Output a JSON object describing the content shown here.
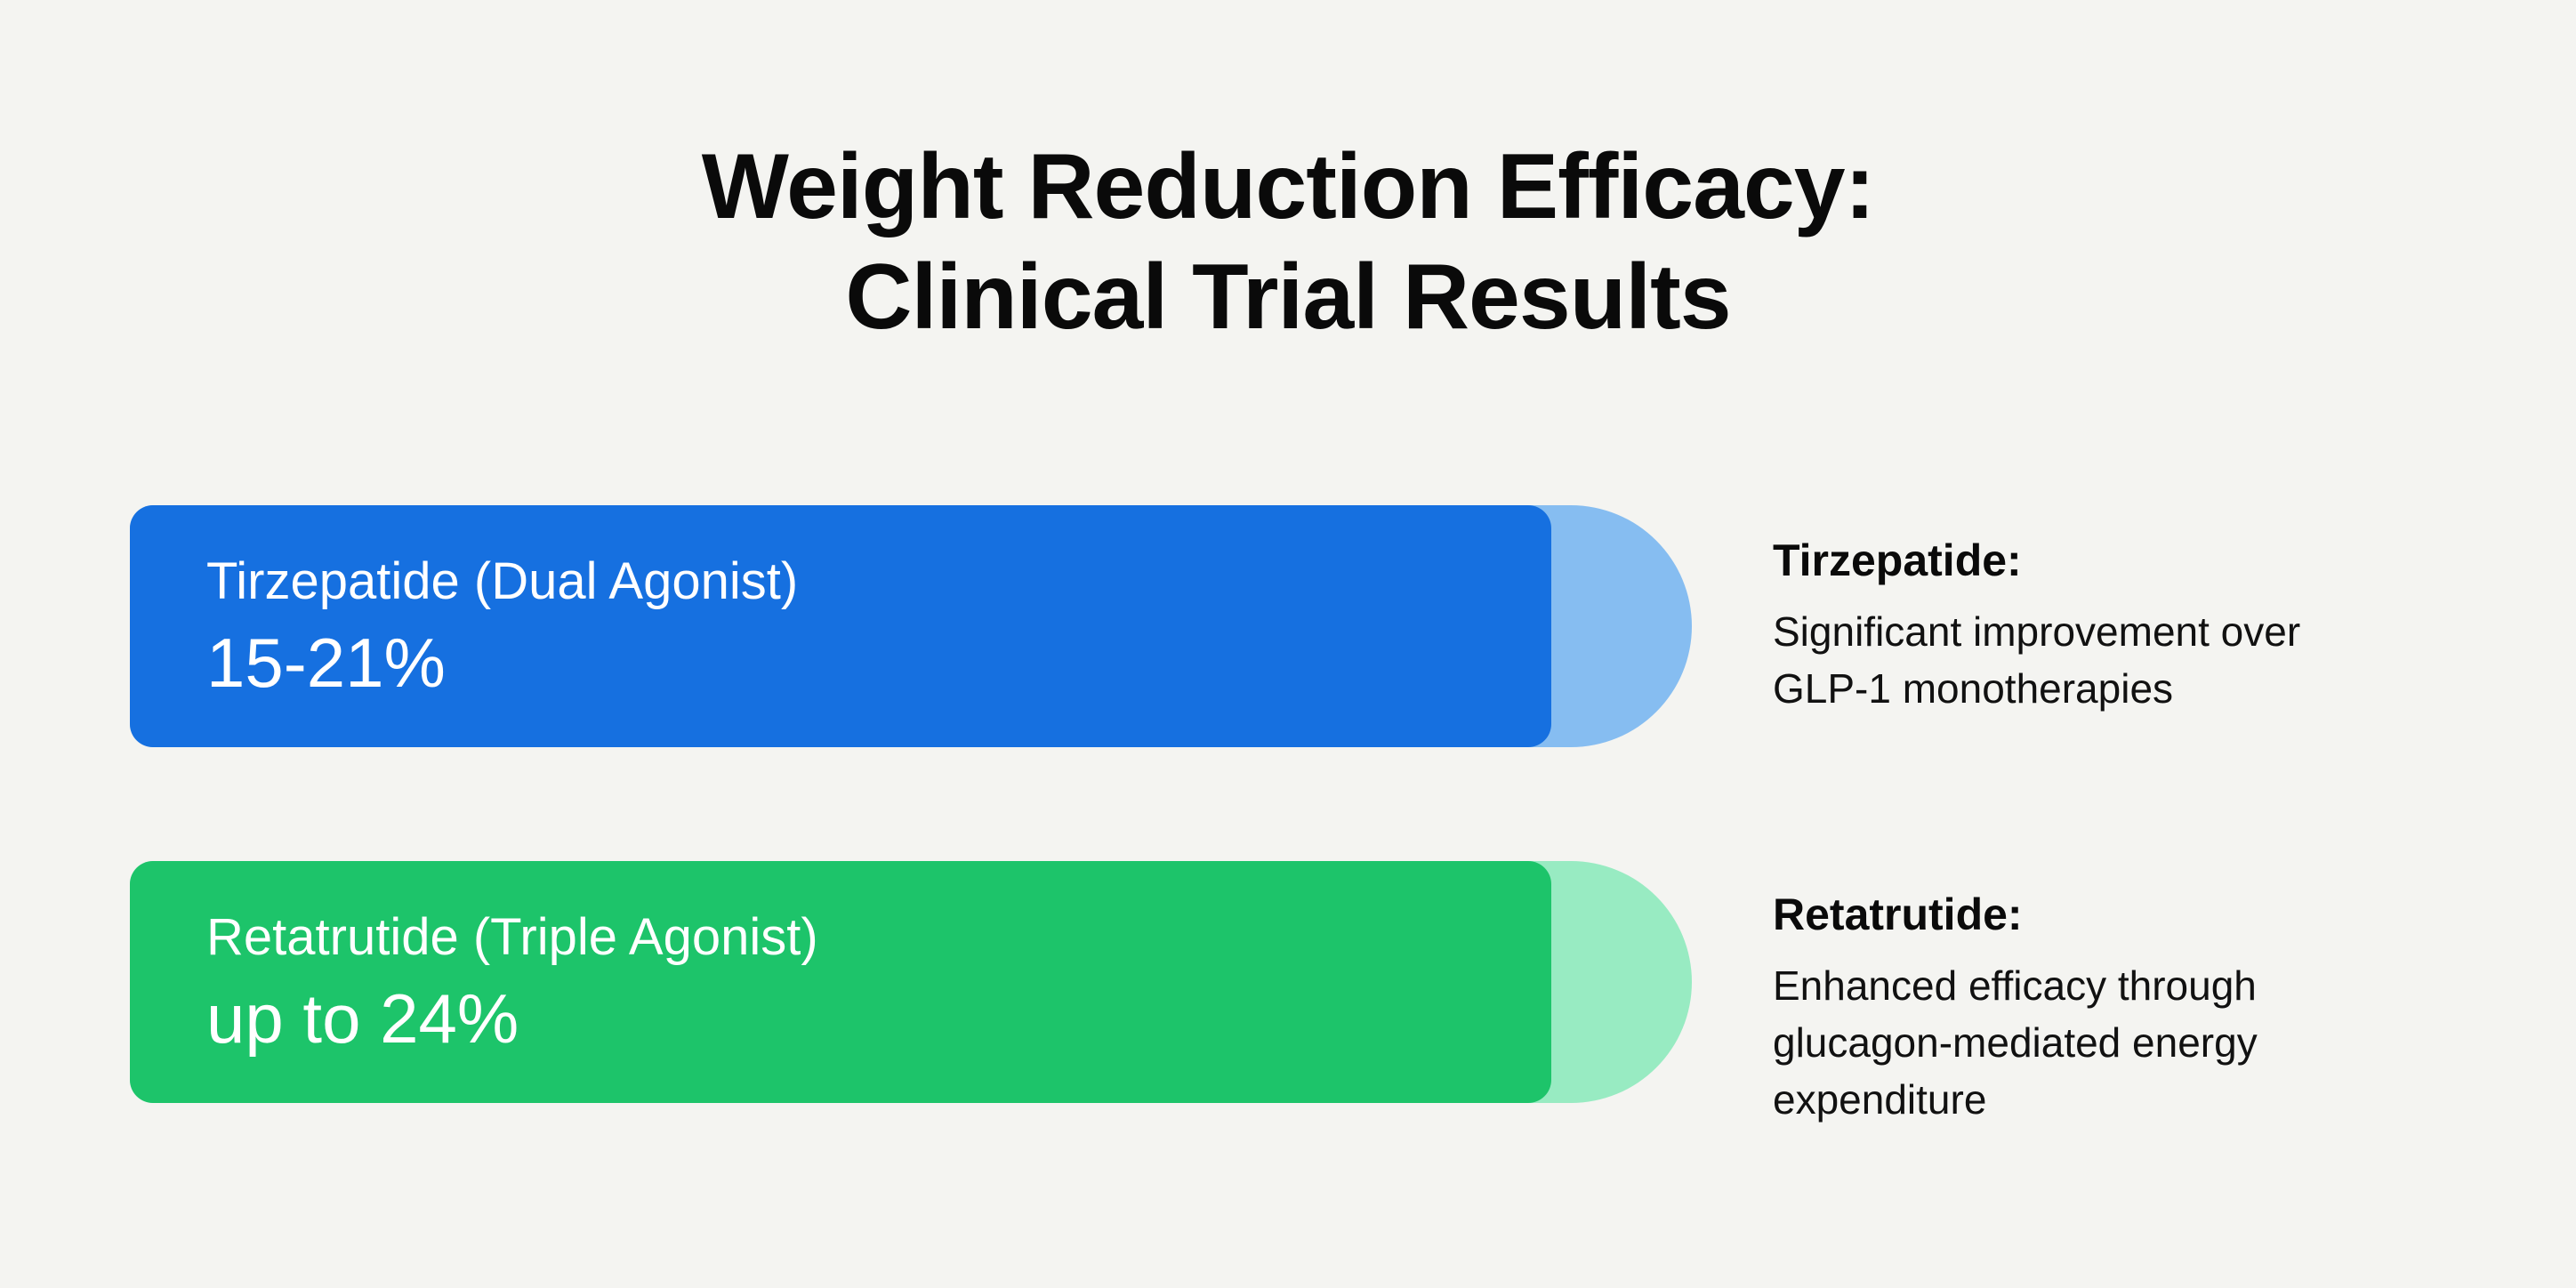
{
  "chart_data": {
    "type": "bar",
    "title": "Weight Reduction Efficacy: Clinical Trial Results",
    "title_lines": [
      "Weight Reduction Efficacy:",
      "Clinical Trial Results"
    ],
    "categories": [
      "Tirzepatide (Dual Agonist)",
      "Retatrutide (Triple Agonist)"
    ],
    "series": [
      {
        "values": [
          "15-21%",
          "up to 24%"
        ]
      }
    ],
    "bars": [
      {
        "label": "Tirzepatide (Dual Agonist)",
        "value_text": "15-21%",
        "min": 15,
        "max": 21,
        "fill_fraction": 0.91,
        "color": "#1670e0",
        "track_color": "#86bdf1"
      },
      {
        "label": "Retatrutide (Triple Agonist)",
        "value_text": "up to 24%",
        "max": 24,
        "fill_fraction": 0.91,
        "color": "#1dc46a",
        "track_color": "#98ebc2"
      }
    ],
    "notes": [
      {
        "title": "Tirzepatide:",
        "lines": [
          "Significant improvement over",
          "GLP-1 monotherapies"
        ]
      },
      {
        "title": "Retatrutide:",
        "lines": [
          "Enhanced efficacy through",
          "glucagon-mediated energy",
          "expenditure"
        ]
      }
    ],
    "xlabel": "",
    "ylabel": "",
    "grid": false,
    "legend": "none"
  },
  "colors": {
    "background": "#f4f4f1",
    "text": "#0a0a0a"
  }
}
